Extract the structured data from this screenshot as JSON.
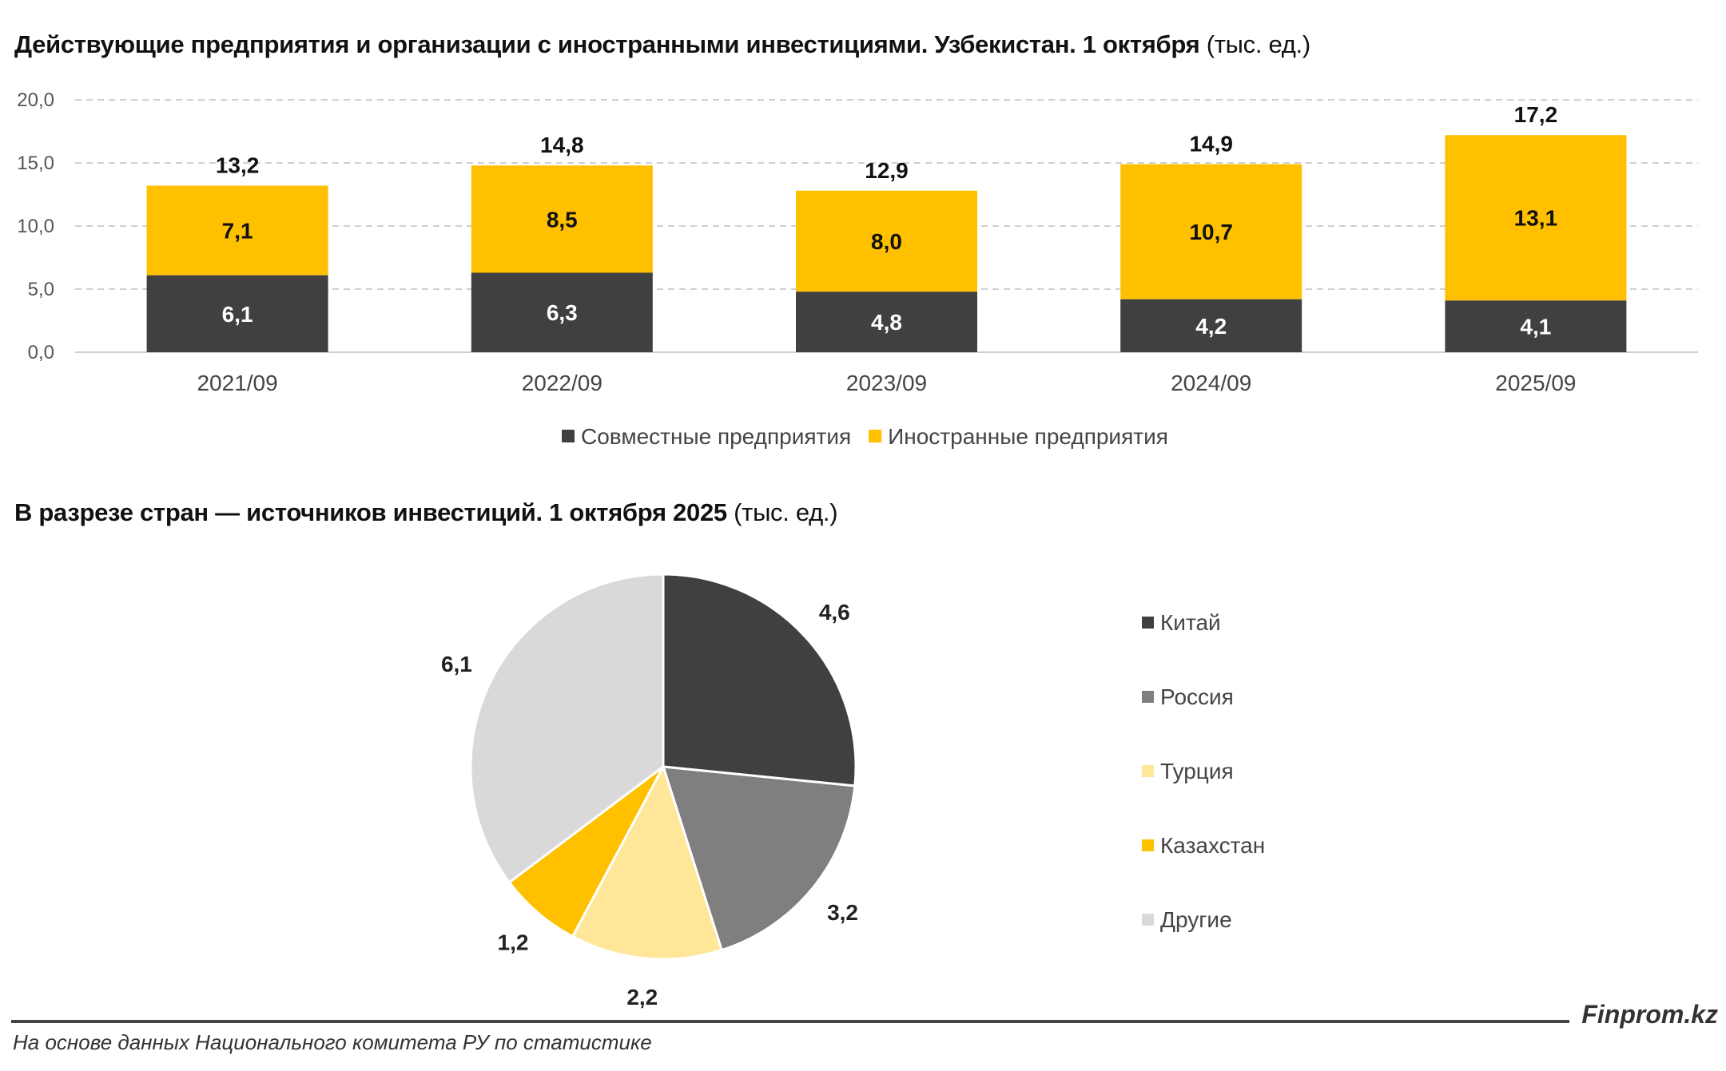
{
  "chart_data": [
    {
      "type": "bar",
      "stacked": true,
      "title": "Действующие предприятия и организации с иностранными инвестициями. Узбекистан. 1 октября",
      "title_unit": "(тыс. ед.)",
      "categories": [
        "2021/09",
        "2022/09",
        "2023/09",
        "2024/09",
        "2025/09"
      ],
      "series": [
        {
          "name": "Совместные предприятия",
          "color": "#404040",
          "values": [
            6.1,
            6.3,
            4.8,
            4.2,
            4.1
          ],
          "labels": [
            "6,1",
            "6,3",
            "4,8",
            "4,2",
            "4,1"
          ]
        },
        {
          "name": "Иностранные предприятия",
          "color": "#FFC000",
          "values": [
            7.1,
            8.5,
            8.0,
            10.7,
            13.1
          ],
          "labels": [
            "7,1",
            "8,5",
            "8,0",
            "10,7",
            "13,1"
          ]
        }
      ],
      "totals": [
        "13,2",
        "14,8",
        "12,9",
        "14,9",
        "17,2"
      ],
      "ylim": [
        0,
        20
      ],
      "yticks": [
        "0,0",
        "5,0",
        "10,0",
        "15,0",
        "20,0"
      ],
      "grid": true,
      "legend": "bottom"
    },
    {
      "type": "pie",
      "title": "В разрезе стран — источников инвестиций. 1 октября 2025",
      "title_unit": "(тыс. ед.)",
      "slices": [
        {
          "name": "Китай",
          "value": 4.6,
          "label": "4,6",
          "color": "#404040"
        },
        {
          "name": "Россия",
          "value": 3.2,
          "label": "3,2",
          "color": "#7F7F7F"
        },
        {
          "name": "Турция",
          "value": 2.2,
          "label": "2,2",
          "color": "#FFE699"
        },
        {
          "name": "Казахстан",
          "value": 1.2,
          "label": "1,2",
          "color": "#FFC000"
        },
        {
          "name": "Другие",
          "value": 6.1,
          "label": "6,1",
          "color": "#D9D9D9"
        }
      ],
      "legend": "right"
    }
  ],
  "footer": {
    "source": "На основе данных Национального комитета РУ по статистике",
    "brand": "Finprom.kz"
  }
}
